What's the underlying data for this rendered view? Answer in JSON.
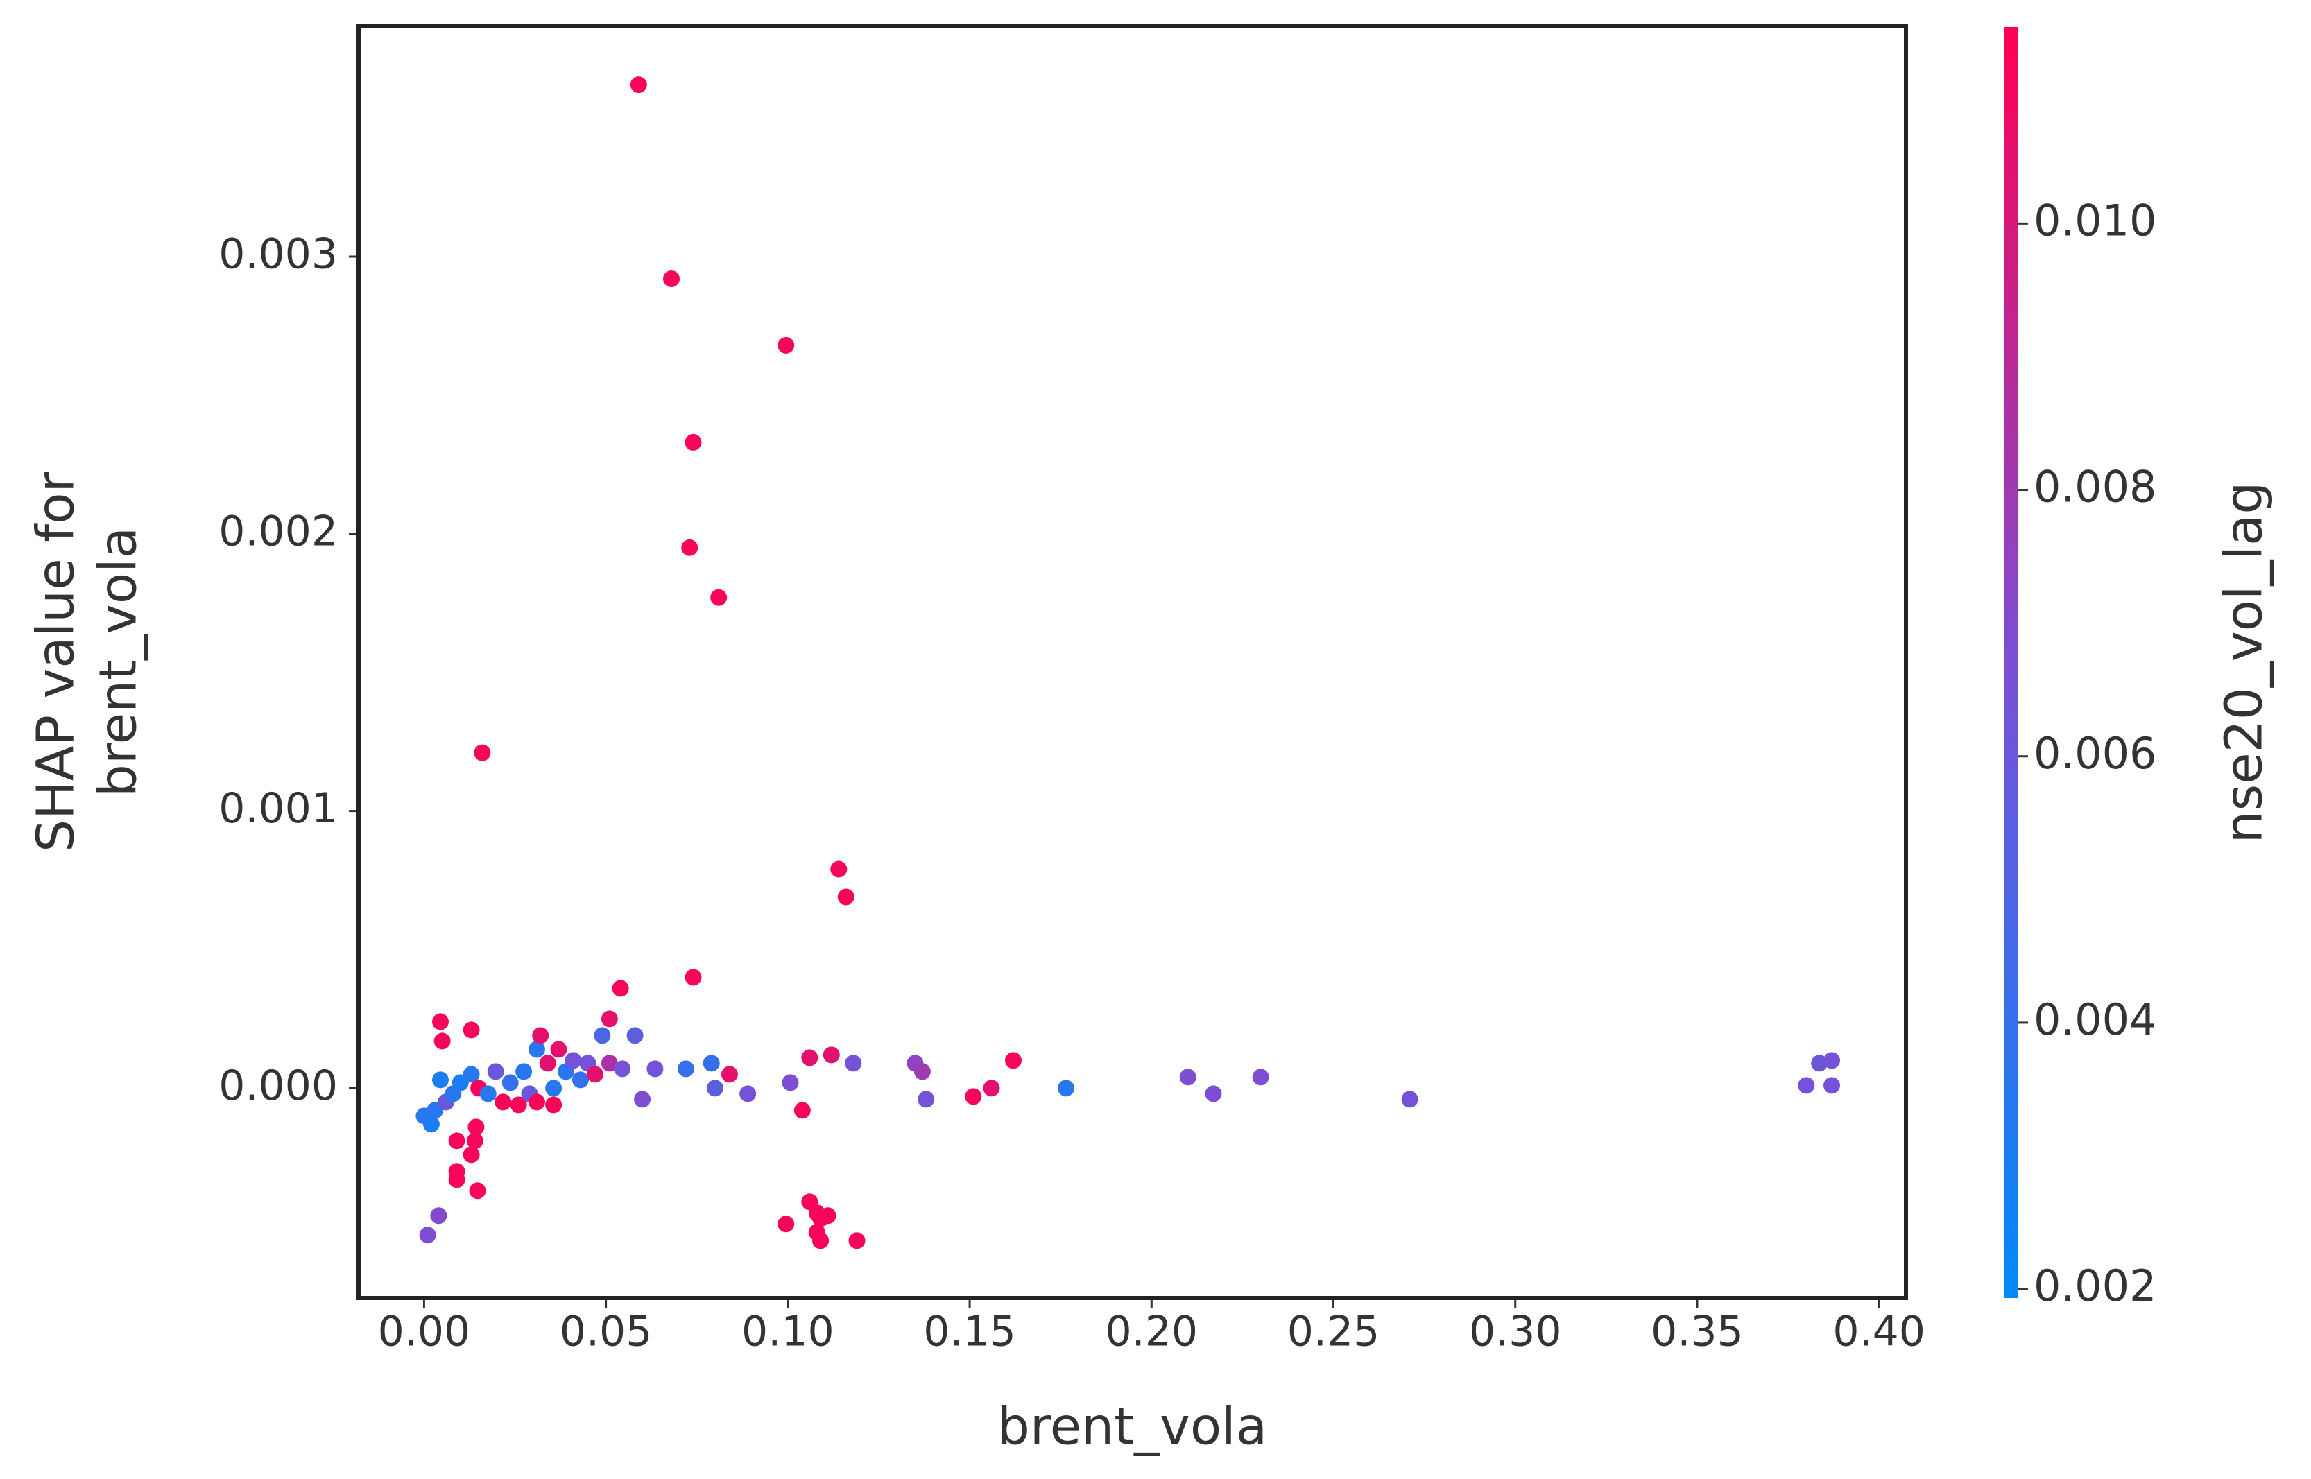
{
  "chart_data": {
    "type": "scatter",
    "xlabel": "brent_vola",
    "ylabel": [
      "SHAP value for",
      "brent_vola"
    ],
    "colorbar_label": "nse20_vol_lag",
    "xlim": [
      -0.018,
      0.4074
    ],
    "ylim": [
      -0.000757,
      0.003833
    ],
    "clim": [
      0.001933,
      0.011475
    ],
    "xticks": [
      {
        "value": 0,
        "label": "0.00"
      },
      0.05,
      {
        "value": 0.1,
        "label": "0.10"
      },
      0.15,
      {
        "value": 0.2,
        "label": "0.20"
      },
      0.25,
      {
        "value": 0.3,
        "label": "0.30"
      },
      0.35,
      {
        "value": 0.4,
        "label": "0.40"
      }
    ],
    "yticks": [
      {
        "value": 0,
        "label": "0.000"
      },
      0.001,
      0.002,
      0.003
    ],
    "cticks": [
      0.002,
      0.004,
      0.006,
      0.008,
      {
        "value": 0.01,
        "label": "0.010"
      }
    ],
    "colormap": [
      "#008afb",
      "#7a4fd6",
      "#ff0052"
    ],
    "x": [
      0.059,
      0.068,
      0.0995,
      0.074,
      0.073,
      0.081,
      0.016,
      0.114,
      0.116,
      0.074,
      0.054,
      0.051,
      0.0045,
      0.013,
      0.005,
      0.001,
      0.004,
      0.009,
      0.013,
      0.014,
      0.0143,
      0.009,
      0.009,
      0.0147,
      0.0995,
      0.106,
      0.108,
      0.109,
      0.111,
      0.108,
      0.109,
      0.119,
      0.104,
      0.106,
      0.112,
      0.084,
      0.151,
      0.156,
      0.162,
      0.118,
      0.135,
      0.137,
      0.138,
      0.1765,
      0.21,
      0.217,
      0.23,
      0.271,
      0.38,
      0.3836,
      0.387,
      0.387,
      0.08,
      0.079,
      0.089,
      0.1007,
      0.072,
      0.06,
      0.058,
      0.049,
      0.0,
      0.002,
      0.003,
      0.0045,
      0.006,
      0.008,
      0.01,
      0.013,
      0.015,
      0.0176,
      0.0197,
      0.0217,
      0.0237,
      0.026,
      0.0274,
      0.029,
      0.031,
      0.032,
      0.034,
      0.0356,
      0.037,
      0.039,
      0.041,
      0.043,
      0.045,
      0.047,
      0.051,
      0.0545,
      0.0635,
      0.0356,
      0.031
    ],
    "values": [
      0.00362,
      0.00292,
      0.00268,
      0.00233,
      0.00195,
      0.00177,
      0.00121,
      0.00079,
      0.00069,
      0.0004,
      0.00036,
      0.00025,
      0.00024,
      0.00021,
      0.00017,
      -0.00053,
      -0.00046,
      -0.00019,
      -0.00024,
      -0.00019,
      -0.00014,
      -0.0003,
      -0.00033,
      -0.00037,
      -0.00049,
      -0.00041,
      -0.00045,
      -0.00047,
      -0.00046,
      -0.00052,
      -0.00055,
      -0.00055,
      -8e-05,
      0.00011,
      0.00012,
      5e-05,
      -3e-05,
      0.0,
      0.0001,
      9e-05,
      9e-05,
      6e-05,
      -4e-05,
      0.0,
      4e-05,
      -2e-05,
      4e-05,
      -4e-05,
      1e-05,
      9e-05,
      0.0001,
      1e-05,
      0.0,
      9e-05,
      -2e-05,
      2e-05,
      7e-05,
      -4e-05,
      0.00019,
      0.00019,
      -0.0001,
      -0.00013,
      -8e-05,
      3e-05,
      -5e-05,
      -2e-05,
      2e-05,
      5e-05,
      0.0,
      -2e-05,
      6e-05,
      -5e-05,
      2e-05,
      -6e-05,
      6e-05,
      -2e-05,
      0.00014,
      0.00019,
      9e-05,
      0.0,
      0.00014,
      6e-05,
      0.0001,
      3e-05,
      9e-05,
      5e-05,
      9e-05,
      7e-05,
      7e-05,
      -6e-05,
      -5e-05
    ],
    "color_values": [
      0.0112,
      0.0112,
      0.0112,
      0.0112,
      0.0112,
      0.0112,
      0.0112,
      0.0112,
      0.0112,
      0.0112,
      0.0112,
      0.0105,
      0.0112,
      0.0112,
      0.0112,
      0.0068,
      0.007,
      0.0112,
      0.0112,
      0.0112,
      0.0112,
      0.0112,
      0.0112,
      0.0112,
      0.0112,
      0.0112,
      0.0112,
      0.0112,
      0.0112,
      0.0112,
      0.0112,
      0.0112,
      0.0112,
      0.0105,
      0.0105,
      0.0105,
      0.0112,
      0.0105,
      0.0112,
      0.0065,
      0.0075,
      0.008,
      0.0065,
      0.0035,
      0.0068,
      0.0068,
      0.0068,
      0.0065,
      0.0065,
      0.0062,
      0.0065,
      0.0065,
      0.0055,
      0.004,
      0.0065,
      0.0068,
      0.004,
      0.0068,
      0.0055,
      0.0048,
      0.0035,
      0.003,
      0.0035,
      0.003,
      0.006,
      0.0035,
      0.003,
      0.0035,
      0.0112,
      0.0035,
      0.006,
      0.0112,
      0.004,
      0.0112,
      0.0035,
      0.006,
      0.0035,
      0.0105,
      0.0105,
      0.0035,
      0.0105,
      0.0035,
      0.0065,
      0.004,
      0.0065,
      0.0105,
      0.0085,
      0.0065,
      0.0065,
      0.0112,
      0.0112
    ]
  }
}
